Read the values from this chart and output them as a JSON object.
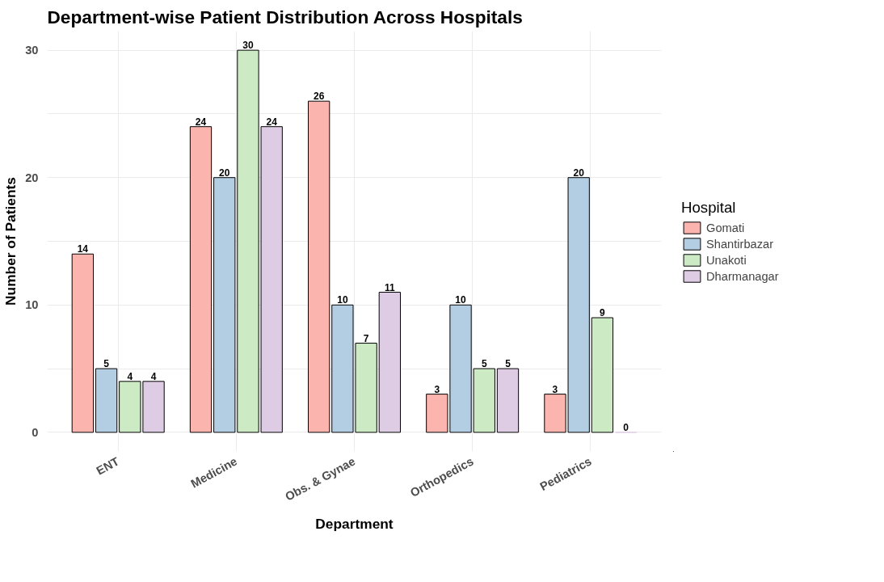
{
  "chart_data": {
    "type": "bar",
    "title": "Department-wise Patient Distribution Across Hospitals",
    "xlabel": "Department",
    "ylabel": "Number of Patients",
    "legend_title": "Hospital",
    "categories": [
      "ENT",
      "Medicine",
      "Obs. & Gynae",
      "Orthopedics",
      "Pediatrics"
    ],
    "series": [
      {
        "name": "Gomati",
        "color": "#fbb4ae",
        "values": [
          14,
          24,
          26,
          3,
          3
        ]
      },
      {
        "name": "Shantirbazar",
        "color": "#b3cde3",
        "values": [
          5,
          20,
          10,
          10,
          20
        ]
      },
      {
        "name": "Unakoti",
        "color": "#ccebc5",
        "values": [
          4,
          30,
          7,
          5,
          9
        ]
      },
      {
        "name": "Dharmanagar",
        "color": "#decbe4",
        "values": [
          4,
          24,
          11,
          5,
          0
        ]
      }
    ],
    "ylim": [
      -1.5,
      31.5
    ],
    "yticks": [
      0,
      {
        "value": 5,
        "label": null
      },
      10,
      {
        "value": 15,
        "label": null
      },
      20,
      {
        "value": 25,
        "label": null
      },
      30
    ],
    "grid": true,
    "legend": "right",
    "data_labels": true
  }
}
